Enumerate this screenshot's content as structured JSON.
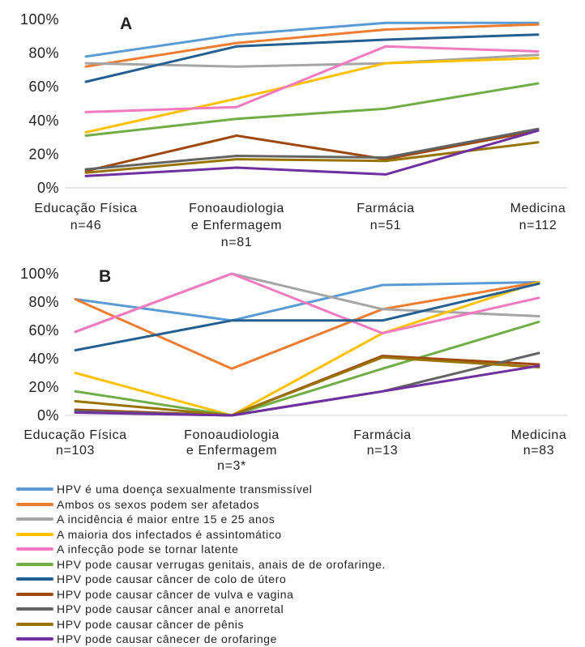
{
  "chart_data": [
    {
      "type": "line",
      "panel_label": "A",
      "categories": [
        [
          "Educação Física",
          "n=46"
        ],
        [
          "Fonoaudiologia",
          "e Enfermagem",
          "n=81"
        ],
        [
          "Farmácia",
          "n=51"
        ],
        [
          "Medicina",
          "n=112"
        ]
      ],
      "yticks": [
        "0%",
        "20%",
        "40%",
        "60%",
        "80%",
        "100%"
      ],
      "ylim": [
        0,
        100
      ],
      "grid": false,
      "series": [
        {
          "color": "#5b9bd5",
          "values": [
            78,
            91,
            98,
            98
          ]
        },
        {
          "color": "#ed7d31",
          "values": [
            72,
            86,
            94,
            97
          ]
        },
        {
          "color": "#a5a5a5",
          "values": [
            74,
            72,
            74,
            79
          ]
        },
        {
          "color": "#ffc000",
          "values": [
            33,
            53,
            74,
            77
          ]
        },
        {
          "color": "#f27ac0",
          "values": [
            45,
            48,
            84,
            81
          ]
        },
        {
          "color": "#70ad47",
          "values": [
            31,
            41,
            47,
            62
          ]
        },
        {
          "color": "#255e91",
          "values": [
            63,
            84,
            88,
            91
          ]
        },
        {
          "color": "#9e480e",
          "values": [
            10,
            31,
            17,
            34
          ]
        },
        {
          "color": "#636363",
          "values": [
            11,
            19,
            18,
            35
          ]
        },
        {
          "color": "#997300",
          "values": [
            9,
            17,
            16,
            27
          ]
        },
        {
          "color": "#7030a0",
          "values": [
            7,
            12,
            8,
            34
          ]
        }
      ]
    },
    {
      "type": "line",
      "panel_label": "B",
      "categories": [
        [
          "Educação Física",
          "n=103"
        ],
        [
          "Fonoaudiologia",
          "e Enfermagem",
          "n=3*"
        ],
        [
          "Farmácia",
          "n=13"
        ],
        [
          "Medicina",
          "n=83"
        ]
      ],
      "yticks": [
        "0%",
        "20%",
        "40%",
        "60%",
        "80%",
        "100%"
      ],
      "ylim": [
        0,
        100
      ],
      "grid": false,
      "series": [
        {
          "color": "#5b9bd5",
          "values": [
            82,
            67,
            92,
            94
          ]
        },
        {
          "color": "#ed7d31",
          "values": [
            82,
            33,
            75,
            94
          ]
        },
        {
          "color": "#a5a5a5",
          "values": [
            59,
            100,
            75,
            70
          ]
        },
        {
          "color": "#ffc000",
          "values": [
            30,
            0,
            58,
            94
          ]
        },
        {
          "color": "#f27ac0",
          "values": [
            59,
            100,
            58,
            83
          ]
        },
        {
          "color": "#70ad47",
          "values": [
            17,
            0,
            33,
            66
          ]
        },
        {
          "color": "#255e91",
          "values": [
            46,
            67,
            67,
            93
          ]
        },
        {
          "color": "#9e480e",
          "values": [
            4,
            0,
            42,
            36
          ]
        },
        {
          "color": "#636363",
          "values": [
            3,
            0,
            17,
            44
          ]
        },
        {
          "color": "#997300",
          "values": [
            10,
            0,
            41,
            34
          ]
        },
        {
          "color": "#7030a0",
          "values": [
            2,
            0,
            17,
            35
          ]
        }
      ]
    }
  ],
  "legend": [
    {
      "label": "HPV é uma doença sexualmente transmissível",
      "color": "#5b9bd5"
    },
    {
      "label": "Ambos os sexos podem ser afetados",
      "color": "#ed7d31"
    },
    {
      "label": "A incidência é maior entre 15 e 25 anos",
      "color": "#a5a5a5"
    },
    {
      "label": "A maioria dos infectados é assintomático",
      "color": "#ffc000"
    },
    {
      "label": "A infecção pode se tornar latente",
      "color": "#f27ac0"
    },
    {
      "label": "HPV pode causar verrugas genitais, anais de de orofaringe.",
      "color": "#70ad47"
    },
    {
      "label": "HPV pode causar câncer de colo de útero",
      "color": "#255e91"
    },
    {
      "label": "HPV pode causar câncer de vulva e vagina",
      "color": "#9e480e"
    },
    {
      "label": "HPV pode causar câncer anal e anorretal",
      "color": "#636363"
    },
    {
      "label": " HPV pode causar câncer de pênis",
      "color": "#997300"
    },
    {
      "label": "HPV pode causar cânecer de orofaringe",
      "color": "#7030a0"
    }
  ]
}
